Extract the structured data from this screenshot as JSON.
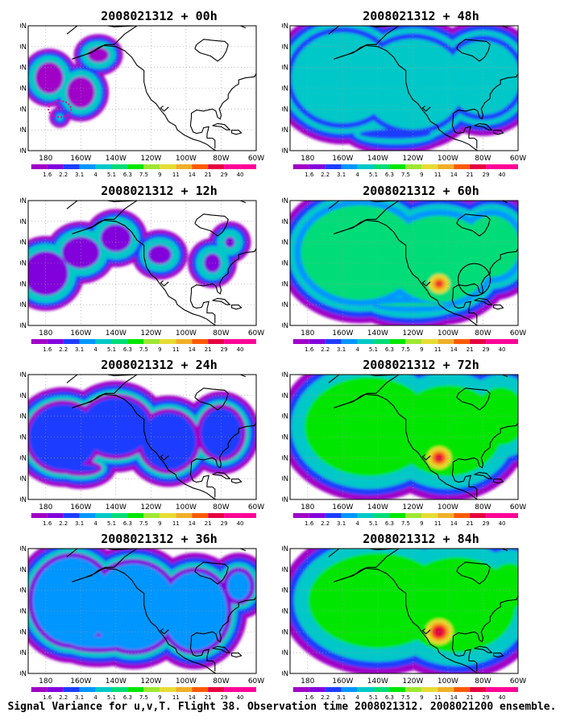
{
  "panels": [
    {
      "title": "2008021312 + 00h",
      "level": 0
    },
    {
      "title": "2008021312 + 48h",
      "level": 4
    },
    {
      "title": "2008021312 + 12h",
      "level": 1
    },
    {
      "title": "2008021312 + 60h",
      "level": 5
    },
    {
      "title": "2008021312 + 24h",
      "level": 2
    },
    {
      "title": "2008021312 + 72h",
      "level": 6
    },
    {
      "title": "2008021312 + 36h",
      "level": 3
    },
    {
      "title": "2008021312 + 84h",
      "level": 7
    }
  ],
  "lat_labels": [
    "70N",
    "60N",
    "50N",
    "40N",
    "30N",
    "20N",
    "10N"
  ],
  "lon_labels": [
    "180",
    "160W",
    "140W",
    "120W",
    "100W",
    "80W",
    "60W"
  ],
  "colorbar": {
    "labels": [
      "1.6",
      "2.2",
      "3.1",
      "4",
      "5.1",
      "6.3",
      "7.5",
      "9",
      "11",
      "14",
      "21",
      "29",
      "40"
    ],
    "colors": [
      "#a000c8",
      "#8200dc",
      "#1e3cff",
      "#0096ff",
      "#00c8c8",
      "#00dc78",
      "#00e600",
      "#a0e632",
      "#e6dc32",
      "#f0af28",
      "#fa5a00",
      "#e60040",
      "#ff0096"
    ]
  },
  "footer": "Signal Variance for u,v,T. Flight 38. Observation time 2008021312. 2008021200 ensemble."
}
